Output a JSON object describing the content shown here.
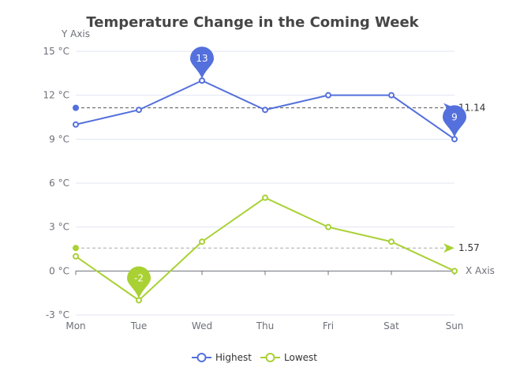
{
  "chart_data": {
    "type": "line",
    "title": "Temperature Change in the Coming Week",
    "xlabel": "X Axis",
    "ylabel": "Y Axis",
    "categories": [
      "Mon",
      "Tue",
      "Wed",
      "Thu",
      "Fri",
      "Sat",
      "Sun"
    ],
    "ylim": [
      -3,
      15
    ],
    "yticks": [
      -3,
      0,
      3,
      6,
      9,
      12,
      15
    ],
    "ytick_labels": [
      "-3 °C",
      "0 °C",
      "3 °C",
      "6 °C",
      "9 °C",
      "12 °C",
      "15 °C"
    ],
    "grid": true,
    "legend_position": "bottom-center",
    "series": [
      {
        "name": "Highest",
        "color": "#5470dc",
        "values": [
          10,
          11,
          13,
          11,
          12,
          12,
          9
        ],
        "markpoints": [
          {
            "label": "13",
            "index": 2
          },
          {
            "label": "9",
            "index": 6
          }
        ],
        "average": 11.14,
        "average_label": "11.14"
      },
      {
        "name": "Lowest",
        "color": "#a9d134",
        "values": [
          1,
          -2,
          2,
          5,
          3,
          2,
          0
        ],
        "markpoints": [
          {
            "label": "-2",
            "index": 1
          }
        ],
        "average": 1.57,
        "average_label": "1.57"
      }
    ]
  }
}
